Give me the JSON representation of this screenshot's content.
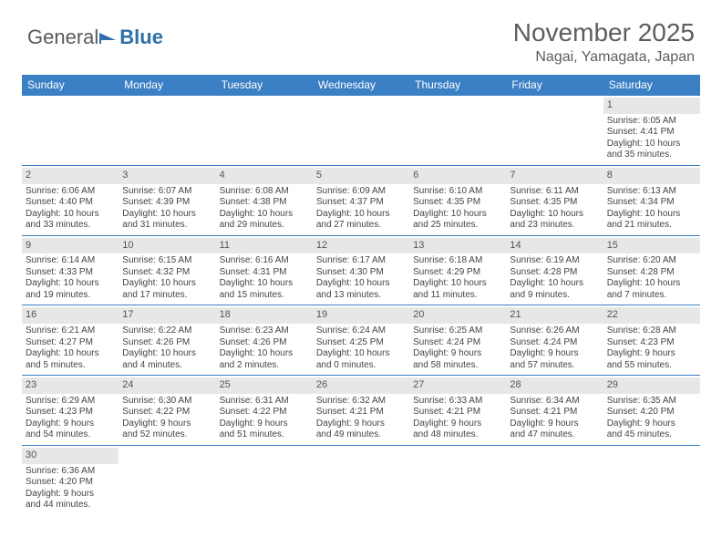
{
  "brand": {
    "part1": "General",
    "part2": "Blue"
  },
  "title": "November 2025",
  "location": "Nagai, Yamagata, Japan",
  "colors": {
    "header_bg": "#3b7fc4",
    "header_text": "#ffffff",
    "daynum_bg": "#e7e7e7",
    "text": "#444444",
    "title_text": "#5d5d5d",
    "row_divider": "#3b7fc4"
  },
  "day_names": [
    "Sunday",
    "Monday",
    "Tuesday",
    "Wednesday",
    "Thursday",
    "Friday",
    "Saturday"
  ],
  "weeks": [
    [
      null,
      null,
      null,
      null,
      null,
      null,
      {
        "n": "1",
        "sunrise": "Sunrise: 6:05 AM",
        "sunset": "Sunset: 4:41 PM",
        "day1": "Daylight: 10 hours",
        "day2": "and 35 minutes."
      }
    ],
    [
      {
        "n": "2",
        "sunrise": "Sunrise: 6:06 AM",
        "sunset": "Sunset: 4:40 PM",
        "day1": "Daylight: 10 hours",
        "day2": "and 33 minutes."
      },
      {
        "n": "3",
        "sunrise": "Sunrise: 6:07 AM",
        "sunset": "Sunset: 4:39 PM",
        "day1": "Daylight: 10 hours",
        "day2": "and 31 minutes."
      },
      {
        "n": "4",
        "sunrise": "Sunrise: 6:08 AM",
        "sunset": "Sunset: 4:38 PM",
        "day1": "Daylight: 10 hours",
        "day2": "and 29 minutes."
      },
      {
        "n": "5",
        "sunrise": "Sunrise: 6:09 AM",
        "sunset": "Sunset: 4:37 PM",
        "day1": "Daylight: 10 hours",
        "day2": "and 27 minutes."
      },
      {
        "n": "6",
        "sunrise": "Sunrise: 6:10 AM",
        "sunset": "Sunset: 4:35 PM",
        "day1": "Daylight: 10 hours",
        "day2": "and 25 minutes."
      },
      {
        "n": "7",
        "sunrise": "Sunrise: 6:11 AM",
        "sunset": "Sunset: 4:35 PM",
        "day1": "Daylight: 10 hours",
        "day2": "and 23 minutes."
      },
      {
        "n": "8",
        "sunrise": "Sunrise: 6:13 AM",
        "sunset": "Sunset: 4:34 PM",
        "day1": "Daylight: 10 hours",
        "day2": "and 21 minutes."
      }
    ],
    [
      {
        "n": "9",
        "sunrise": "Sunrise: 6:14 AM",
        "sunset": "Sunset: 4:33 PM",
        "day1": "Daylight: 10 hours",
        "day2": "and 19 minutes."
      },
      {
        "n": "10",
        "sunrise": "Sunrise: 6:15 AM",
        "sunset": "Sunset: 4:32 PM",
        "day1": "Daylight: 10 hours",
        "day2": "and 17 minutes."
      },
      {
        "n": "11",
        "sunrise": "Sunrise: 6:16 AM",
        "sunset": "Sunset: 4:31 PM",
        "day1": "Daylight: 10 hours",
        "day2": "and 15 minutes."
      },
      {
        "n": "12",
        "sunrise": "Sunrise: 6:17 AM",
        "sunset": "Sunset: 4:30 PM",
        "day1": "Daylight: 10 hours",
        "day2": "and 13 minutes."
      },
      {
        "n": "13",
        "sunrise": "Sunrise: 6:18 AM",
        "sunset": "Sunset: 4:29 PM",
        "day1": "Daylight: 10 hours",
        "day2": "and 11 minutes."
      },
      {
        "n": "14",
        "sunrise": "Sunrise: 6:19 AM",
        "sunset": "Sunset: 4:28 PM",
        "day1": "Daylight: 10 hours",
        "day2": "and 9 minutes."
      },
      {
        "n": "15",
        "sunrise": "Sunrise: 6:20 AM",
        "sunset": "Sunset: 4:28 PM",
        "day1": "Daylight: 10 hours",
        "day2": "and 7 minutes."
      }
    ],
    [
      {
        "n": "16",
        "sunrise": "Sunrise: 6:21 AM",
        "sunset": "Sunset: 4:27 PM",
        "day1": "Daylight: 10 hours",
        "day2": "and 5 minutes."
      },
      {
        "n": "17",
        "sunrise": "Sunrise: 6:22 AM",
        "sunset": "Sunset: 4:26 PM",
        "day1": "Daylight: 10 hours",
        "day2": "and 4 minutes."
      },
      {
        "n": "18",
        "sunrise": "Sunrise: 6:23 AM",
        "sunset": "Sunset: 4:26 PM",
        "day1": "Daylight: 10 hours",
        "day2": "and 2 minutes."
      },
      {
        "n": "19",
        "sunrise": "Sunrise: 6:24 AM",
        "sunset": "Sunset: 4:25 PM",
        "day1": "Daylight: 10 hours",
        "day2": "and 0 minutes."
      },
      {
        "n": "20",
        "sunrise": "Sunrise: 6:25 AM",
        "sunset": "Sunset: 4:24 PM",
        "day1": "Daylight: 9 hours",
        "day2": "and 58 minutes."
      },
      {
        "n": "21",
        "sunrise": "Sunrise: 6:26 AM",
        "sunset": "Sunset: 4:24 PM",
        "day1": "Daylight: 9 hours",
        "day2": "and 57 minutes."
      },
      {
        "n": "22",
        "sunrise": "Sunrise: 6:28 AM",
        "sunset": "Sunset: 4:23 PM",
        "day1": "Daylight: 9 hours",
        "day2": "and 55 minutes."
      }
    ],
    [
      {
        "n": "23",
        "sunrise": "Sunrise: 6:29 AM",
        "sunset": "Sunset: 4:23 PM",
        "day1": "Daylight: 9 hours",
        "day2": "and 54 minutes."
      },
      {
        "n": "24",
        "sunrise": "Sunrise: 6:30 AM",
        "sunset": "Sunset: 4:22 PM",
        "day1": "Daylight: 9 hours",
        "day2": "and 52 minutes."
      },
      {
        "n": "25",
        "sunrise": "Sunrise: 6:31 AM",
        "sunset": "Sunset: 4:22 PM",
        "day1": "Daylight: 9 hours",
        "day2": "and 51 minutes."
      },
      {
        "n": "26",
        "sunrise": "Sunrise: 6:32 AM",
        "sunset": "Sunset: 4:21 PM",
        "day1": "Daylight: 9 hours",
        "day2": "and 49 minutes."
      },
      {
        "n": "27",
        "sunrise": "Sunrise: 6:33 AM",
        "sunset": "Sunset: 4:21 PM",
        "day1": "Daylight: 9 hours",
        "day2": "and 48 minutes."
      },
      {
        "n": "28",
        "sunrise": "Sunrise: 6:34 AM",
        "sunset": "Sunset: 4:21 PM",
        "day1": "Daylight: 9 hours",
        "day2": "and 47 minutes."
      },
      {
        "n": "29",
        "sunrise": "Sunrise: 6:35 AM",
        "sunset": "Sunset: 4:20 PM",
        "day1": "Daylight: 9 hours",
        "day2": "and 45 minutes."
      }
    ],
    [
      {
        "n": "30",
        "sunrise": "Sunrise: 6:36 AM",
        "sunset": "Sunset: 4:20 PM",
        "day1": "Daylight: 9 hours",
        "day2": "and 44 minutes."
      },
      null,
      null,
      null,
      null,
      null,
      null
    ]
  ]
}
